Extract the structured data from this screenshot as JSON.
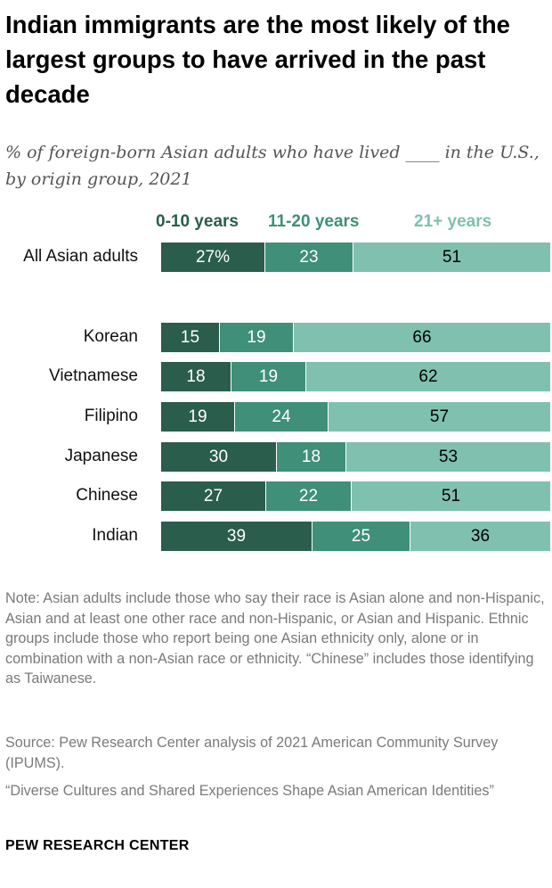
{
  "title": "Indian immigrants are the most likely of the largest groups to have arrived in the past decade",
  "subtitle": "% of foreign-born Asian adults who have lived ____ in the U.S., by origin group, 2021",
  "colors": {
    "series": [
      "#2a5d4c",
      "#3f8f79",
      "#7fc1ae"
    ],
    "label_text": [
      "#ffffff",
      "#ffffff",
      "#000000"
    ]
  },
  "chart_data": {
    "type": "bar",
    "orientation": "horizontal",
    "stacked": true,
    "categories": [
      "All Asian adults",
      "Korean",
      "Vietnamese",
      "Filipino",
      "Japanese",
      "Chinese",
      "Indian"
    ],
    "series": [
      {
        "name": "0-10 years",
        "values": [
          27,
          15,
          18,
          19,
          30,
          27,
          39
        ],
        "labels": [
          "27%",
          "15",
          "18",
          "19",
          "30",
          "27",
          "39"
        ]
      },
      {
        "name": "11-20 years",
        "values": [
          23,
          19,
          19,
          24,
          18,
          22,
          25
        ],
        "labels": [
          "23",
          "19",
          "19",
          "24",
          "18",
          "22",
          "25"
        ]
      },
      {
        "name": "21+ years",
        "values": [
          51,
          66,
          62,
          57,
          53,
          51,
          36
        ],
        "labels": [
          "51",
          "66",
          "62",
          "57",
          "53",
          "51",
          "36"
        ]
      }
    ],
    "legend_placement": "top",
    "grid": false
  },
  "footer": {
    "note": "Note: Asian adults include those who say their race is Asian alone and non-Hispanic, Asian and at least one other race and non-Hispanic, or Asian and Hispanic. Ethnic groups include those who report being  one Asian ethnicity only, alone or in combination with a non-Asian race or ethnicity. “Chinese” includes those identifying as Taiwanese.",
    "source": "Source: Pew Research Center analysis of 2021 American Community Survey (IPUMS).",
    "report": "“Diverse Cultures and Shared Experiences Shape Asian American Identities”",
    "brand": "PEW RESEARCH CENTER"
  }
}
